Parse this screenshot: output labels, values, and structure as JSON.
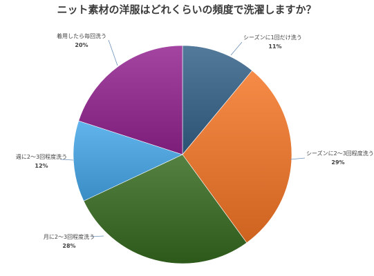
{
  "chart_data": {
    "type": "pie",
    "title": "ニット素材の洋服はどれくらいの頻度で洗濯しますか？",
    "slices": [
      {
        "label": "シーズンに1回だけ洗う",
        "value": 11,
        "pct_label": "11%",
        "color": "#3d6385"
      },
      {
        "label": "シーズンに2〜3回程度洗う",
        "value": 29,
        "pct_label": "29%",
        "color": "#e07532"
      },
      {
        "label": "月に2〜3回程度洗う",
        "value": 28,
        "pct_label": "28%",
        "color": "#3f6b2c"
      },
      {
        "label": "週に2〜3回程度洗う",
        "value": 12,
        "pct_label": "12%",
        "color": "#4c9fd6"
      },
      {
        "label": "着用したら毎回洗う",
        "value": 20,
        "pct_label": "20%",
        "color": "#8e2f8c"
      }
    ],
    "legend": "none",
    "start_angle_deg": 0,
    "direction": "clockwise"
  }
}
